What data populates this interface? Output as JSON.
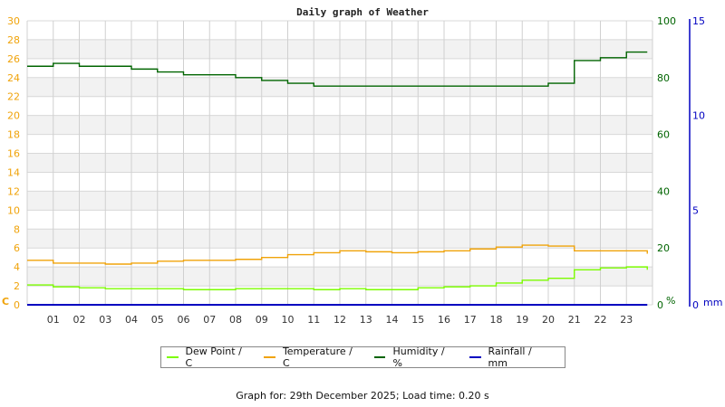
{
  "chart_data": {
    "type": "line",
    "title": "Daily graph of Weather",
    "xlabel": "",
    "x_ticks": [
      "01",
      "02",
      "03",
      "04",
      "05",
      "06",
      "07",
      "08",
      "09",
      "10",
      "11",
      "12",
      "13",
      "14",
      "15",
      "16",
      "17",
      "18",
      "19",
      "20",
      "21",
      "22",
      "23"
    ],
    "left_axis": {
      "label": "C",
      "ylim": [
        0,
        30
      ],
      "ticks": [
        0,
        2,
        4,
        6,
        8,
        10,
        12,
        14,
        16,
        18,
        20,
        22,
        24,
        26,
        28,
        30
      ],
      "color": "#f0a30a"
    },
    "right_axis": {
      "label": "%",
      "ylim": [
        0,
        100
      ],
      "ticks": [
        0,
        20,
        40,
        60,
        80,
        100
      ],
      "color": "#006400"
    },
    "rain_axis": {
      "label": "mm",
      "ylim": [
        0,
        15
      ],
      "ticks": [
        0,
        5,
        10,
        15
      ],
      "color": "#0000c0"
    },
    "grid": true,
    "legend_position": "bottom",
    "x_hours": [
      0,
      1,
      2,
      3,
      4,
      5,
      6,
      7,
      8,
      9,
      10,
      11,
      12,
      13,
      14,
      15,
      16,
      17,
      18,
      19,
      20,
      21,
      22,
      23,
      23.8
    ],
    "series": [
      {
        "name": "Dew Point / C",
        "axis": "left",
        "color": "#7cfc00",
        "values": [
          2.1,
          1.9,
          1.8,
          1.7,
          1.7,
          1.7,
          1.6,
          1.6,
          1.7,
          1.7,
          1.7,
          1.6,
          1.7,
          1.6,
          1.6,
          1.8,
          1.9,
          2.0,
          2.3,
          2.6,
          2.8,
          3.7,
          3.9,
          4.0,
          3.7
        ]
      },
      {
        "name": "Temperature / C",
        "axis": "left",
        "color": "#f0a30a",
        "values": [
          4.7,
          4.4,
          4.4,
          4.3,
          4.4,
          4.6,
          4.7,
          4.7,
          4.8,
          5.0,
          5.3,
          5.5,
          5.7,
          5.6,
          5.5,
          5.6,
          5.7,
          5.9,
          6.1,
          6.3,
          6.2,
          5.7,
          5.7,
          5.7,
          5.4
        ]
      },
      {
        "name": "Humidity / %",
        "axis": "right",
        "color": "#006400",
        "values": [
          84,
          85,
          84,
          84,
          83,
          82,
          81,
          81,
          80,
          79,
          78,
          77,
          77,
          77,
          77,
          77,
          77,
          77,
          77,
          77,
          78,
          86,
          87,
          89,
          89
        ]
      },
      {
        "name": "Rainfall / mm",
        "axis": "rain",
        "color": "#0000c0",
        "values": [
          0,
          0,
          0,
          0,
          0,
          0,
          0,
          0,
          0,
          0,
          0,
          0,
          0,
          0,
          0,
          0,
          0,
          0,
          0,
          0,
          0,
          0,
          0,
          0,
          0
        ]
      }
    ]
  },
  "legend": [
    {
      "label": "Dew Point / C",
      "color": "#7cfc00"
    },
    {
      "label": "Temperature / C",
      "color": "#f0a30a"
    },
    {
      "label": "Humidity / %",
      "color": "#006400"
    },
    {
      "label": "Rainfall / mm",
      "color": "#0000c0"
    }
  ],
  "footer": "Graph for: 29th December 2025; Load time: 0.20 s"
}
